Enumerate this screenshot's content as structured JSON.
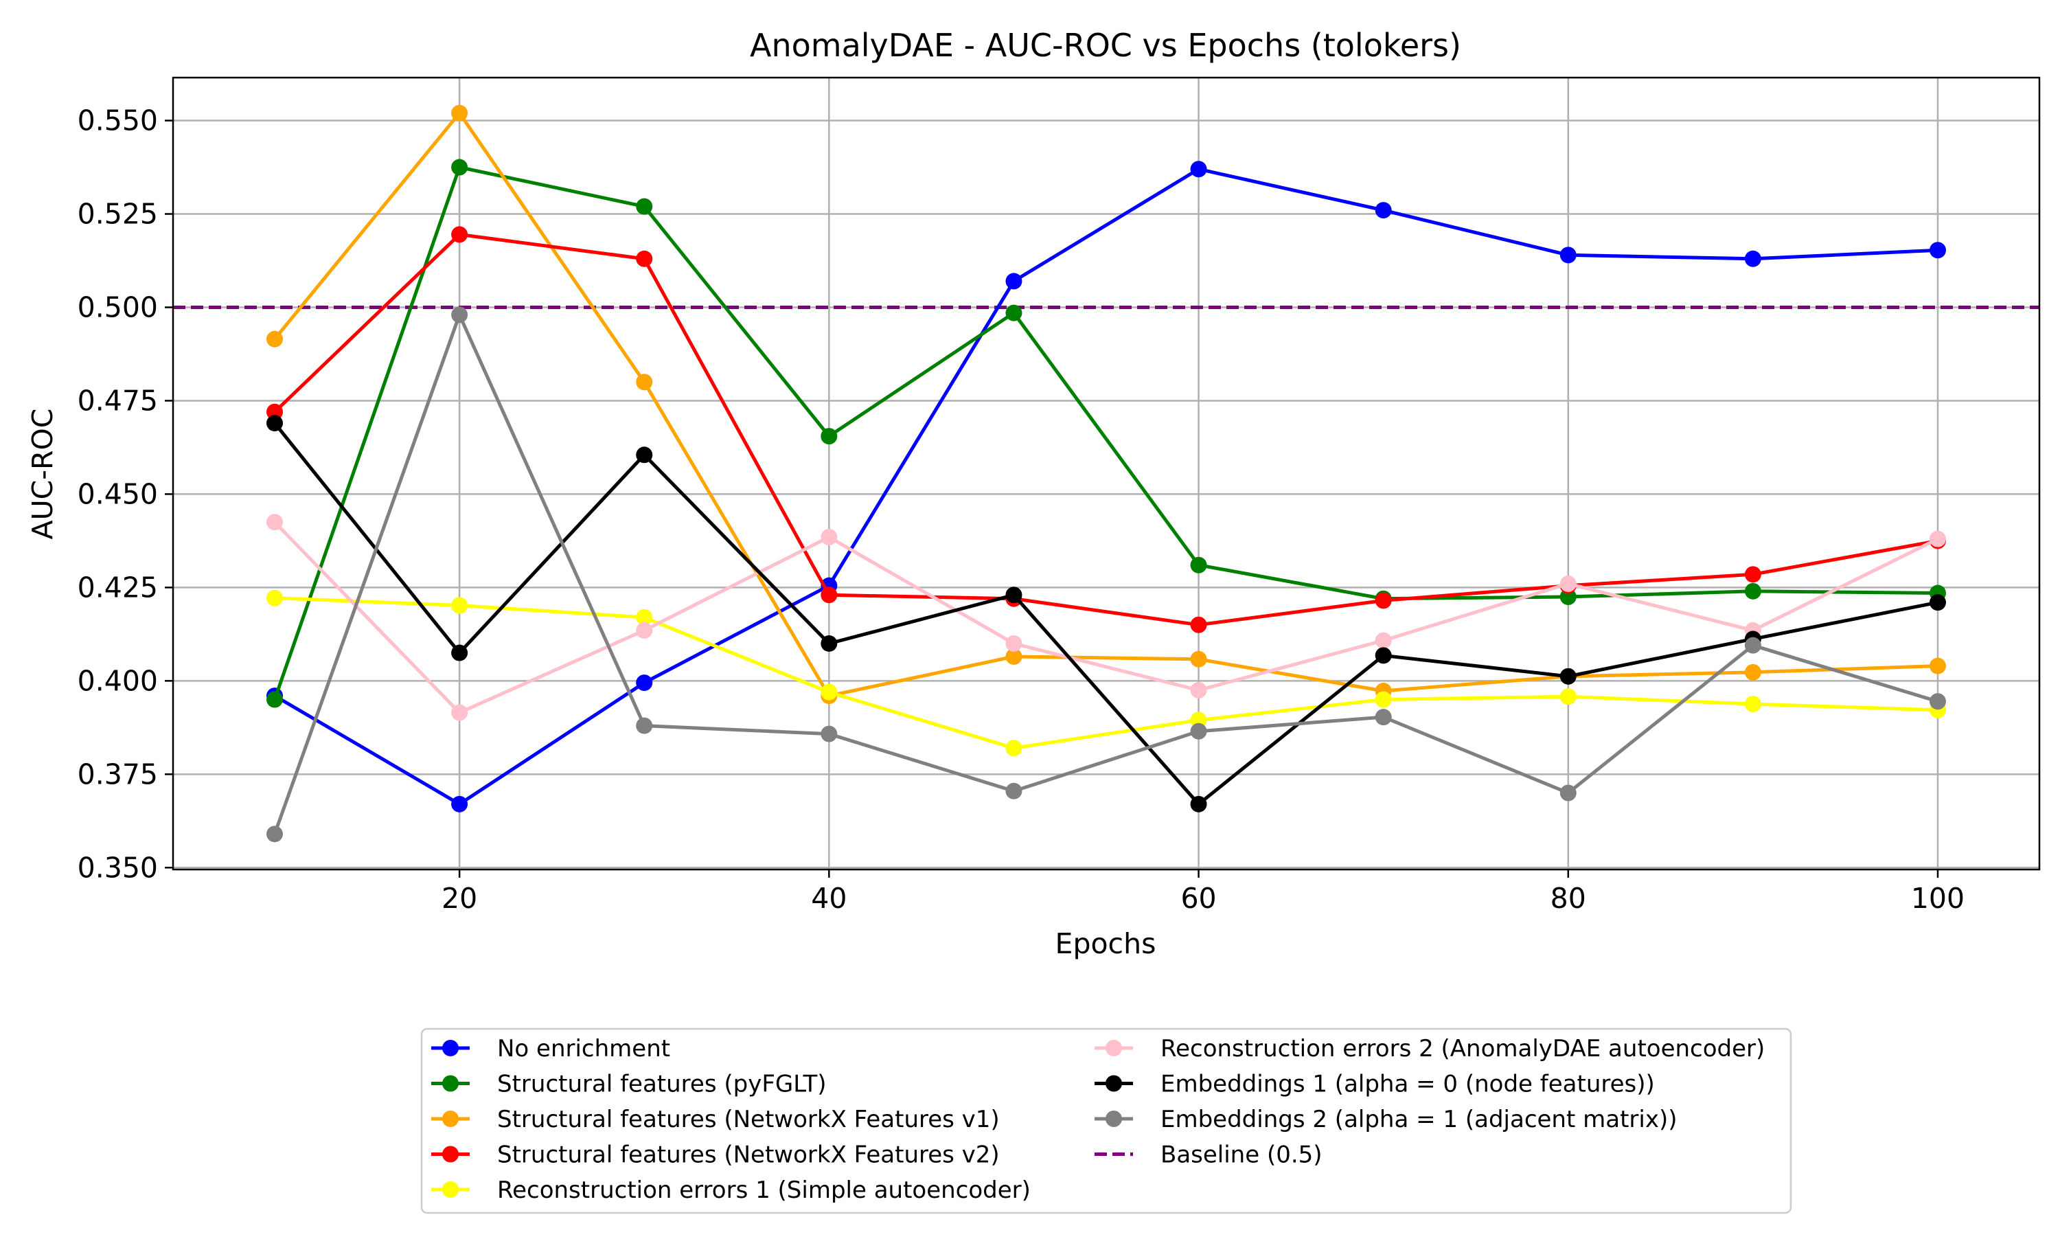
{
  "chart_data": {
    "type": "line",
    "title": "AnomalyDAE - AUC-ROC vs Epochs (tolokers)",
    "xlabel": "Epochs",
    "ylabel": "AUC-ROC",
    "x": [
      10,
      20,
      30,
      40,
      50,
      60,
      70,
      80,
      90,
      100
    ],
    "xlim": [
      4.5,
      105.5
    ],
    "ylim": [
      0.3495,
      0.5615
    ],
    "xticks": [
      20,
      40,
      60,
      80,
      100
    ],
    "yticks": [
      0.35,
      0.375,
      0.4,
      0.425,
      0.45,
      0.475,
      0.5,
      0.525,
      0.55
    ],
    "xtick_labels": [
      "20",
      "40",
      "60",
      "80",
      "100"
    ],
    "ytick_labels": [
      "0.350",
      "0.375",
      "0.400",
      "0.425",
      "0.450",
      "0.475",
      "0.500",
      "0.525",
      "0.550"
    ],
    "grid": true,
    "legend_position": "bottom-center",
    "series": [
      {
        "name": "No enrichment",
        "color": "#0000ff",
        "values": [
          0.396,
          0.367,
          0.3995,
          0.4255,
          0.507,
          0.537,
          0.526,
          0.514,
          0.513,
          0.5153
        ]
      },
      {
        "name": "Structural features (pyFGLT)",
        "color": "#008000",
        "values": [
          0.395,
          0.5375,
          0.527,
          0.4655,
          0.4985,
          0.431,
          0.422,
          0.4225,
          0.424,
          0.4235
        ]
      },
      {
        "name": "Structural features (NetworkX Features v1)",
        "color": "#ffa500",
        "values": [
          0.4915,
          0.552,
          0.48,
          0.396,
          0.4065,
          0.4058,
          0.3973,
          0.4012,
          0.4023,
          0.404
        ]
      },
      {
        "name": "Structural features (NetworkX Features v2)",
        "color": "#ff0000",
        "values": [
          0.472,
          0.5195,
          0.513,
          0.423,
          0.422,
          0.415,
          0.4215,
          0.4255,
          0.4285,
          0.4375
        ]
      },
      {
        "name": "Reconstruction errors 1 (Simple autoencoder)",
        "color": "#ffff00",
        "values": [
          0.4222,
          0.4202,
          0.417,
          0.397,
          0.382,
          0.3895,
          0.395,
          0.3958,
          0.3938,
          0.3922
        ]
      },
      {
        "name": "Reconstruction errors 2 (AnomalyDAE autoencoder)",
        "color": "#ffc0cb",
        "values": [
          0.4425,
          0.3915,
          0.4135,
          0.4385,
          0.41,
          0.3975,
          0.4108,
          0.426,
          0.4135,
          0.438
        ]
      },
      {
        "name": "Embeddings 1 (alpha = 0 (node features))",
        "color": "#000000",
        "values": [
          0.469,
          0.4075,
          0.4605,
          0.41,
          0.423,
          0.367,
          0.4068,
          0.4012,
          0.4112,
          0.421
        ]
      },
      {
        "name": "Embeddings 2 (alpha = 1 (adjacent matrix))",
        "color": "#808080",
        "values": [
          0.359,
          0.498,
          0.388,
          0.3858,
          0.3705,
          0.3865,
          0.3903,
          0.37,
          0.4095,
          0.3945
        ]
      }
    ],
    "baseline": {
      "name": "Baseline (0.5)",
      "color": "#800080",
      "value": 0.5,
      "style": "dashed"
    }
  }
}
